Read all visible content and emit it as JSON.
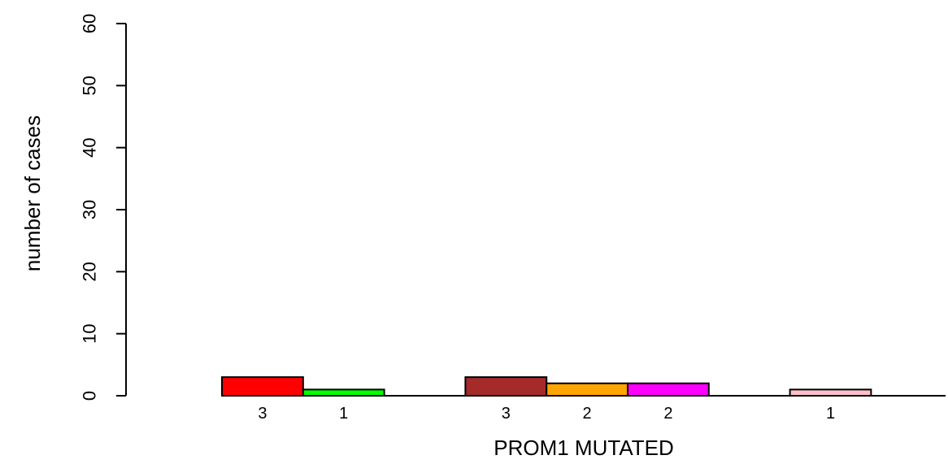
{
  "chart_data": {
    "type": "bar",
    "xlabel": "PROM1 MUTATED",
    "ylabel": "number of cases",
    "ylim": [
      0,
      60
    ],
    "yticks": [
      0,
      10,
      20,
      30,
      40,
      50,
      60
    ],
    "grid": false,
    "legend": "none",
    "bars": [
      {
        "value": 3,
        "label": "3",
        "color": "#ff0000"
      },
      {
        "value": 1,
        "label": "1",
        "color": "#00ff00"
      },
      {
        "value": 0,
        "label": "",
        "color": "#ffffff"
      },
      {
        "value": 3,
        "label": "3",
        "color": "#a52a2a"
      },
      {
        "value": 2,
        "label": "2",
        "color": "#ffa500"
      },
      {
        "value": 2,
        "label": "2",
        "color": "#ff00ff"
      },
      {
        "value": 0,
        "label": "",
        "color": "#ffffff"
      },
      {
        "value": 1,
        "label": "1",
        "color": "#ffc0cb"
      },
      {
        "value": 0,
        "label": "",
        "color": "#ffffff"
      }
    ]
  }
}
